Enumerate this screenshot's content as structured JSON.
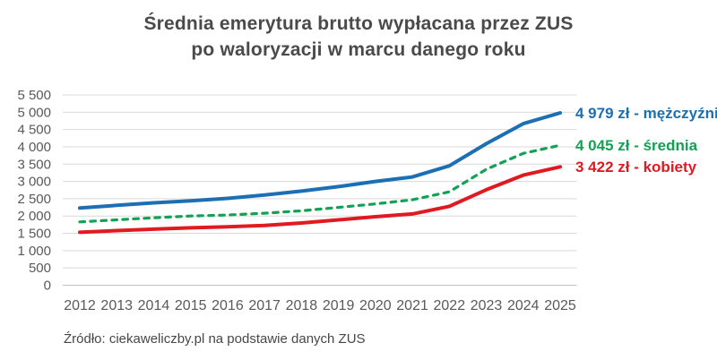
{
  "title": {
    "line1": "Średnia emerytura brutto wypłacana przez ZUS",
    "line2": "po waloryzacji w marcu danego roku"
  },
  "source": "Źródło: ciekaweliczby.pl na podstawie danych ZUS",
  "colors": {
    "men": "#1b6fb5",
    "average": "#12a254",
    "women": "#e01a20",
    "grid": "#d9d9d9",
    "axis_line": "#c0c0c0",
    "axis_text": "#595959",
    "title_text": "#4a4a4a"
  },
  "chart_data": {
    "type": "line",
    "title": "Średnia emerytura brutto wypłacana przez ZUS po waloryzacji w marcu danego roku",
    "x": [
      2012,
      2013,
      2014,
      2015,
      2016,
      2017,
      2018,
      2019,
      2020,
      2021,
      2022,
      2023,
      2024,
      2025
    ],
    "xlabel": "",
    "ylabel": "",
    "ylim": [
      0,
      5500
    ],
    "ytick_step": 500,
    "ytick_labels": [
      "0",
      "500",
      "1 000",
      "1 500",
      "2 000",
      "2 500",
      "3 000",
      "3 500",
      "4 000",
      "4 500",
      "5 000",
      "5 500"
    ],
    "grid": "horizontal",
    "legend_position": "end-labels-right",
    "series": [
      {
        "name": "mężczyźni",
        "style": "solid",
        "color_key": "men",
        "end_label": "4 979 zł - mężczyźni",
        "end_value": 4979,
        "values": [
          2230,
          2310,
          2380,
          2440,
          2510,
          2610,
          2720,
          2850,
          3000,
          3130,
          3450,
          4090,
          4670,
          4979
        ]
      },
      {
        "name": "średnia",
        "style": "dashed",
        "color_key": "average",
        "end_label": "4 045 zł - średnia",
        "end_value": 4045,
        "values": [
          1830,
          1890,
          1950,
          2000,
          2030,
          2080,
          2150,
          2250,
          2350,
          2470,
          2700,
          3350,
          3810,
          4045
        ]
      },
      {
        "name": "kobiety",
        "style": "solid",
        "color_key": "women",
        "end_label": "3 422 zł - kobiety",
        "end_value": 3422,
        "values": [
          1530,
          1580,
          1620,
          1660,
          1690,
          1730,
          1800,
          1890,
          1980,
          2060,
          2280,
          2760,
          3180,
          3422
        ]
      }
    ]
  }
}
